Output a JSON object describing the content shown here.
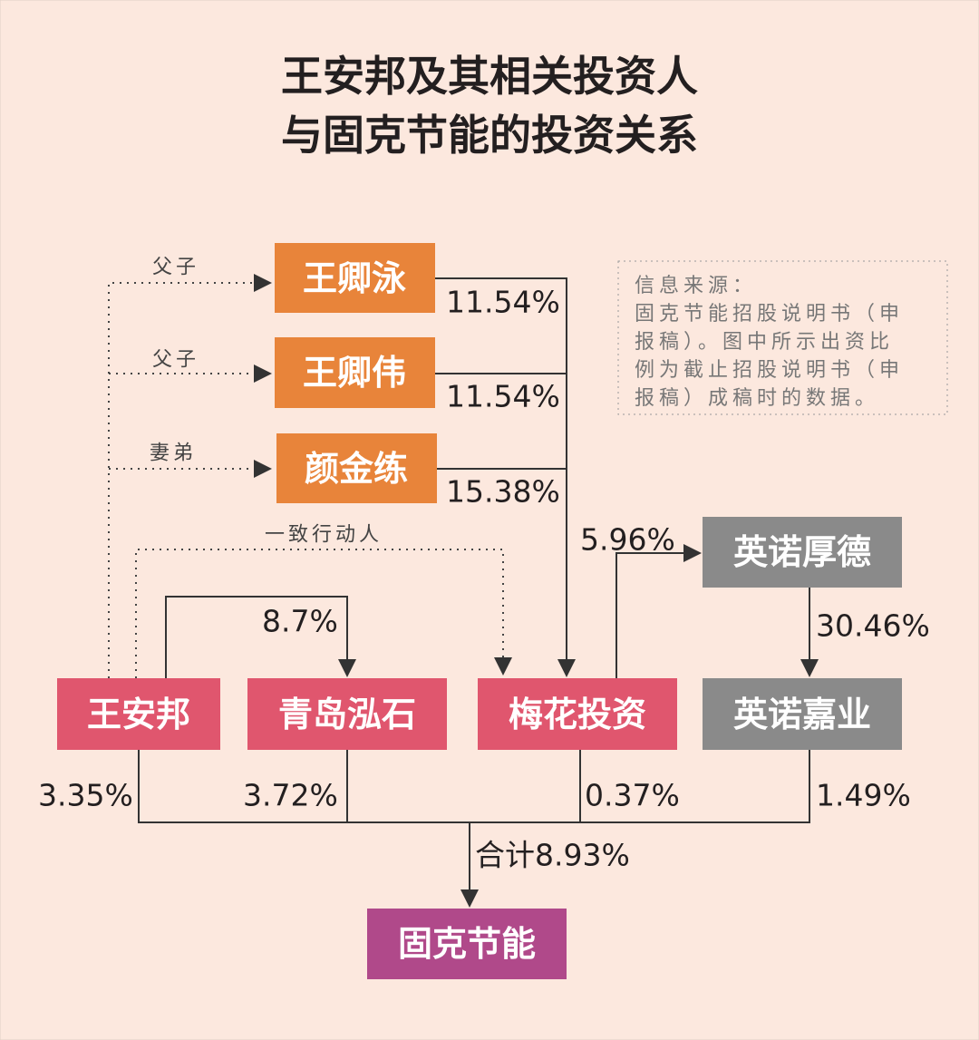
{
  "header": {
    "title_lines": [
      "王安邦及其相关投资人",
      "与固克节能的投资关系"
    ]
  },
  "nodes": {
    "wang_qingyong": {
      "label": "王卿泳"
    },
    "wang_qingwei": {
      "label": "王卿伟"
    },
    "yan_jinlian": {
      "label": "颜金练"
    },
    "wang_anbang": {
      "label": "王安邦"
    },
    "qingdao_hongshi": {
      "label": "青岛泓石"
    },
    "meihua_touzi": {
      "label": "梅花投资"
    },
    "yingnuo_houde": {
      "label": "英诺厚德"
    },
    "yingnuo_jiaye": {
      "label": "英诺嘉业"
    },
    "guke_jieneng": {
      "label": "固克节能"
    }
  },
  "relations": [
    "父子",
    "父子",
    "妻弟",
    "一致行动人"
  ],
  "edges": {
    "wang_qingyong_to_meihua": "11.54%",
    "wang_qingwei_to_meihua": "11.54%",
    "yan_jinlian_to_meihua": "15.38%",
    "wang_anbang_to_qingdao": "8.7%",
    "meihua_to_yingnuo_houde": "5.96%",
    "yingnuo_houde_to_jiaye": "30.46%",
    "wang_anbang_to_guke": "3.35%",
    "qingdao_to_guke": "3.72%",
    "meihua_to_guke": "0.37%",
    "jiaye_to_guke": "1.49%",
    "total_to_guke": "合计8.93%"
  },
  "note": {
    "lines": [
      "信息来源：",
      "固克节能招股说明书（申",
      "报稿）。图中所示出资比",
      "例为截止招股说明书（申",
      "报稿）成稿时的数据。"
    ]
  }
}
